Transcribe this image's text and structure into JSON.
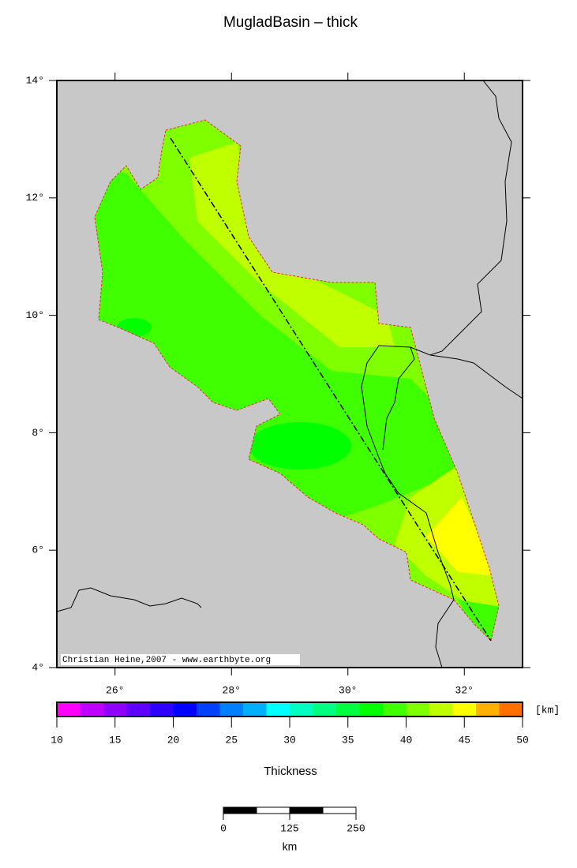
{
  "title": "MugladBasin – thick",
  "map": {
    "xlim": [
      25,
      33
    ],
    "ylim": [
      4,
      14
    ],
    "xticks": [
      {
        "value": 26,
        "label": "26°"
      },
      {
        "value": 28,
        "label": "28°"
      },
      {
        "value": 30,
        "label": "30°"
      },
      {
        "value": 32,
        "label": "32°"
      }
    ],
    "yticks": [
      {
        "value": 4,
        "label": "4°"
      },
      {
        "value": 6,
        "label": "6°"
      },
      {
        "value": 8,
        "label": "8°"
      },
      {
        "value": 10,
        "label": "10°"
      },
      {
        "value": 12,
        "label": "12°"
      },
      {
        "value": 14,
        "label": "14°"
      }
    ],
    "credit": "Christian Heine,2007 - www.earthbyte.org"
  },
  "colorbar": {
    "label": "Thickness",
    "unit": "[km]",
    "lim": [
      10,
      50
    ],
    "ticks": [
      10,
      15,
      20,
      25,
      30,
      35,
      40,
      45,
      50
    ],
    "colors": [
      "#ff00ff",
      "#c000ff",
      "#9000ff",
      "#6000ff",
      "#3000ff",
      "#0000ff",
      "#0040ff",
      "#0080ff",
      "#00b0ff",
      "#00ffff",
      "#00ffc0",
      "#00ff80",
      "#00ff40",
      "#00ff00",
      "#40ff00",
      "#80ff00",
      "#c0ff00",
      "#ffff00",
      "#ffb000",
      "#ff7000"
    ]
  },
  "scalebar": {
    "unit": "km",
    "lim": [
      0,
      250
    ],
    "ticks": [
      0,
      125,
      250
    ]
  }
}
